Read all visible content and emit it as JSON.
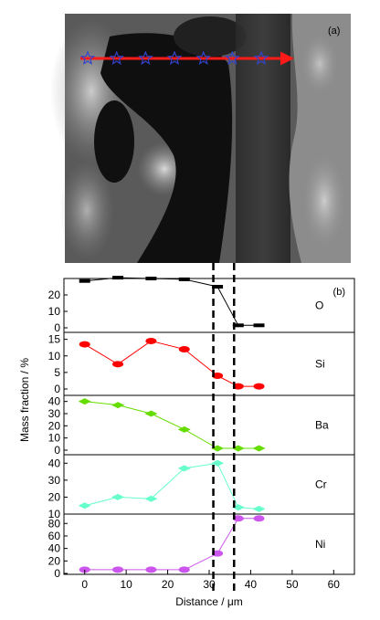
{
  "micrograph": {
    "label": "(a)",
    "linescan": {
      "marker_count": 7
    }
  },
  "chart_data": {
    "type": "line",
    "panel_label": "(b)",
    "xlabel": "Distance / μm",
    "ylabel": "Mass fraction / %",
    "xlim": [
      -5,
      65
    ],
    "x_ticks": [
      0,
      10,
      20,
      30,
      40,
      50,
      60
    ],
    "boundaries_x": [
      31,
      36
    ],
    "x": [
      0,
      8,
      16,
      24,
      32,
      37,
      42
    ],
    "series": [
      {
        "name": "O",
        "color": "#000000",
        "marker": "dash",
        "ylim": [
          0,
          30
        ],
        "y_ticks": [
          0,
          10,
          20
        ],
        "values": [
          28.5,
          30.5,
          30,
          29.5,
          25,
          1.5,
          1.5
        ]
      },
      {
        "name": "Si",
        "color": "#ff0000",
        "marker": "ellipse",
        "ylim": [
          0,
          16
        ],
        "y_ticks": [
          0,
          5,
          10,
          15
        ],
        "values": [
          13.5,
          7.5,
          14.5,
          12,
          4,
          0.8,
          0.8
        ]
      },
      {
        "name": "Ba",
        "color": "#66dd00",
        "marker": "diamond",
        "ylim": [
          0,
          45
        ],
        "y_ticks": [
          0,
          10,
          20,
          30,
          40
        ],
        "values": [
          40,
          37,
          30,
          17,
          1.5,
          1.5,
          1.5
        ]
      },
      {
        "name": "Cr",
        "color": "#66ffcc",
        "marker": "diamond",
        "ylim": [
          10,
          45
        ],
        "y_ticks": [
          10,
          20,
          30,
          40
        ],
        "values": [
          15,
          20,
          19,
          37,
          40,
          14,
          13
        ]
      },
      {
        "name": "Ni",
        "color": "#cc55ee",
        "marker": "ellipse",
        "ylim": [
          0,
          95
        ],
        "y_ticks": [
          0,
          20,
          40,
          60,
          80
        ],
        "values": [
          6,
          6,
          6,
          6,
          32,
          88,
          88
        ]
      }
    ]
  }
}
